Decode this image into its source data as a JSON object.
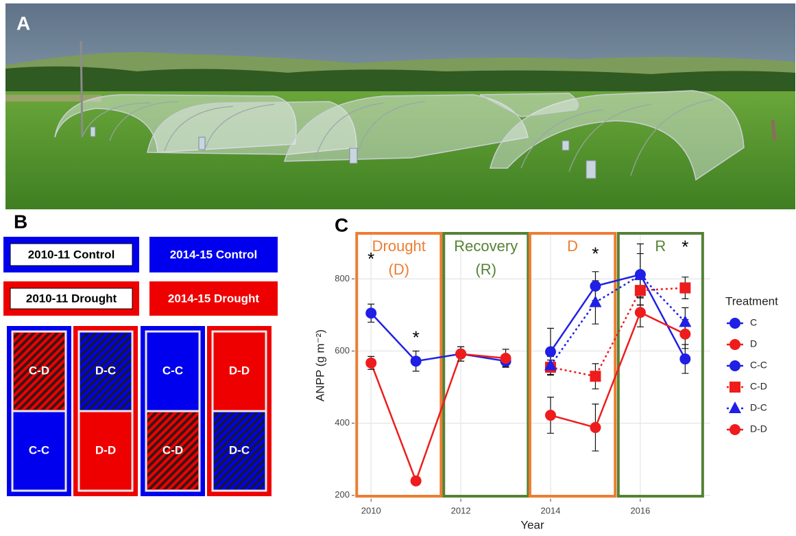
{
  "panel_labels": {
    "a": "A",
    "b": "B",
    "c": "C"
  },
  "panel_b": {
    "legend": [
      {
        "text": "2010-11 Control",
        "color": "#0000ee",
        "filled": false
      },
      {
        "text": "2014-15 Control",
        "color": "#0000ee",
        "filled": true
      },
      {
        "text": "2010-11 Drought",
        "color": "#ee0000",
        "filled": false
      },
      {
        "text": "2014-15 Drought",
        "color": "#ee0000",
        "filled": true
      }
    ],
    "plots": [
      {
        "color": "#0000ee",
        "cells": [
          {
            "label": "C-D",
            "color": "#ee0000",
            "hatched": true
          },
          {
            "label": "C-C",
            "color": "#0000ee",
            "hatched": false
          }
        ]
      },
      {
        "color": "#ee0000",
        "cells": [
          {
            "label": "D-C",
            "color": "#0000ee",
            "hatched": true
          },
          {
            "label": "D-D",
            "color": "#ee0000",
            "hatched": false
          }
        ]
      },
      {
        "color": "#0000ee",
        "cells": [
          {
            "label": "C-C",
            "color": "#0000ee",
            "hatched": false
          },
          {
            "label": "C-D",
            "color": "#ee0000",
            "hatched": true
          }
        ]
      },
      {
        "color": "#ee0000",
        "cells": [
          {
            "label": "D-D",
            "color": "#ee0000",
            "hatched": false
          },
          {
            "label": "D-C",
            "color": "#0000ee",
            "hatched": true
          }
        ]
      }
    ]
  },
  "chart_data": {
    "type": "line",
    "x_label": "Year",
    "y_label": "ANPP (g m⁻²)",
    "xlim": [
      2009.63,
      2017.56
    ],
    "ylim": [
      190,
      930
    ],
    "xticks": [
      2010,
      2012,
      2014,
      2016
    ],
    "yticks": [
      200,
      400,
      600,
      800
    ],
    "grid": true,
    "legend_title": "Treatment",
    "legend_position": "right",
    "periods": [
      {
        "lines": [
          "Drought",
          "(D)"
        ],
        "color": "#ed7d31",
        "start": 2009.68,
        "end": 2011.56
      },
      {
        "lines": [
          "Recovery",
          "(R)"
        ],
        "color": "#548235",
        "start": 2011.62,
        "end": 2013.5
      },
      {
        "lines": [
          "D"
        ],
        "color": "#ed7d31",
        "start": 2013.54,
        "end": 2015.44
      },
      {
        "lines": [
          "R"
        ],
        "color": "#548235",
        "start": 2015.51,
        "end": 2017.39
      }
    ],
    "series": [
      {
        "name": "C",
        "color": "#1f1fe6",
        "marker": "circle",
        "dash": "solid",
        "x": [
          2010,
          2011,
          2012,
          2013
        ],
        "values": [
          705,
          572,
          592,
          572
        ],
        "errors": [
          25,
          28,
          20,
          15
        ]
      },
      {
        "name": "D",
        "color": "#ee1c1c",
        "marker": "circle",
        "dash": "solid",
        "x": [
          2010,
          2011,
          2012,
          2013
        ],
        "values": [
          567,
          240,
          592,
          580
        ],
        "errors": [
          18,
          5,
          20,
          25
        ]
      },
      {
        "name": "C-C",
        "color": "#1f1fe6",
        "marker": "circle",
        "dash": "solid",
        "x": [
          2014,
          2015,
          2016,
          2017
        ],
        "values": [
          598,
          780,
          812,
          578
        ],
        "errors": [
          65,
          40,
          85,
          40
        ]
      },
      {
        "name": "C-D",
        "color": "#ee1c1c",
        "marker": "square",
        "dash": "dotted",
        "x": [
          2014,
          2015,
          2016,
          2017
        ],
        "values": [
          555,
          530,
          768,
          775
        ],
        "errors": [
          20,
          35,
          40,
          30
        ]
      },
      {
        "name": "D-C",
        "color": "#1f1fe6",
        "marker": "triangle",
        "dash": "dotted",
        "x": [
          2014,
          2015,
          2016,
          2017
        ],
        "values": [
          560,
          735,
          810,
          680
        ],
        "errors": [
          25,
          60,
          60,
          40
        ]
      },
      {
        "name": "D-D",
        "color": "#ee1c1c",
        "marker": "circle",
        "dash": "solid",
        "x": [
          2014,
          2015,
          2016,
          2017
        ],
        "values": [
          422,
          388,
          707,
          647
        ],
        "errors": [
          50,
          65,
          40,
          40
        ]
      }
    ],
    "annotations": [
      {
        "text": "*",
        "x": 2010,
        "y": 863
      },
      {
        "text": "*",
        "x": 2011,
        "y": 645
      },
      {
        "text": "*",
        "x": 2015,
        "y": 877
      },
      {
        "text": "*",
        "x": 2017,
        "y": 896
      }
    ]
  }
}
